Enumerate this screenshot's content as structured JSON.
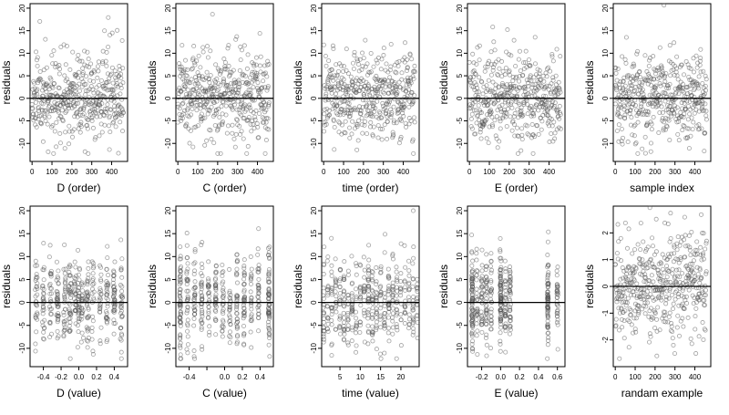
{
  "chart_data": [
    {
      "type": "scatter",
      "xlabel": "D (order)",
      "ylabel": "residuals",
      "xlim": [
        -10,
        480
      ],
      "ylim": [
        -14,
        21
      ],
      "xticks": [
        0,
        100,
        200,
        300,
        400
      ],
      "xtick_labels": [
        "0",
        "100",
        "200",
        "300",
        "400"
      ],
      "yticks": [
        -10,
        -5,
        0,
        5,
        10,
        15,
        20
      ],
      "ytick_labels": [
        "-10",
        "-5",
        "0",
        "5",
        "10",
        "15",
        "20"
      ],
      "hline": 0,
      "gen": {
        "kind": "order",
        "n": 460,
        "spread": 4.8,
        "seed": 11
      }
    },
    {
      "type": "scatter",
      "xlabel": "C (order)",
      "ylabel": "residuals",
      "xlim": [
        -10,
        480
      ],
      "ylim": [
        -14,
        21
      ],
      "xticks": [
        0,
        100,
        200,
        300,
        400
      ],
      "xtick_labels": [
        "0",
        "100",
        "200",
        "300",
        "400"
      ],
      "yticks": [
        -10,
        -5,
        0,
        5,
        10,
        15,
        20
      ],
      "ytick_labels": [
        "-10",
        "-5",
        "0",
        "5",
        "10",
        "15",
        "20"
      ],
      "hline": 0,
      "gen": {
        "kind": "order",
        "n": 460,
        "spread": 4.8,
        "seed": 23
      }
    },
    {
      "type": "scatter",
      "xlabel": "time (order)",
      "ylabel": "residuals",
      "xlim": [
        -10,
        480
      ],
      "ylim": [
        -14,
        21
      ],
      "xticks": [
        0,
        100,
        200,
        300,
        400
      ],
      "xtick_labels": [
        "0",
        "100",
        "200",
        "300",
        "400"
      ],
      "yticks": [
        -10,
        -5,
        0,
        5,
        10,
        15,
        20
      ],
      "ytick_labels": [
        "-10",
        "-5",
        "0",
        "5",
        "10",
        "15",
        "20"
      ],
      "hline": 0,
      "gen": {
        "kind": "order",
        "n": 460,
        "spread": 4.8,
        "seed": 37
      }
    },
    {
      "type": "scatter",
      "xlabel": "E (order)",
      "ylabel": "residuals",
      "xlim": [
        -10,
        480
      ],
      "ylim": [
        -14,
        21
      ],
      "xticks": [
        0,
        100,
        200,
        300,
        400
      ],
      "xtick_labels": [
        "0",
        "100",
        "200",
        "300",
        "400"
      ],
      "yticks": [
        -10,
        -5,
        0,
        5,
        10,
        15,
        20
      ],
      "ytick_labels": [
        "-10",
        "-5",
        "0",
        "5",
        "10",
        "15",
        "20"
      ],
      "hline": 0,
      "gen": {
        "kind": "order",
        "n": 460,
        "spread": 4.8,
        "seed": 41
      }
    },
    {
      "type": "scatter",
      "xlabel": "sample index",
      "ylabel": "residuals",
      "xlim": [
        -10,
        480
      ],
      "ylim": [
        -14,
        21
      ],
      "xticks": [
        0,
        100,
        200,
        300,
        400
      ],
      "xtick_labels": [
        "0",
        "100",
        "200",
        "300",
        "400"
      ],
      "yticks": [
        -10,
        -5,
        0,
        5,
        10,
        15,
        20
      ],
      "ytick_labels": [
        "-10",
        "-5",
        "0",
        "5",
        "10",
        "15",
        "20"
      ],
      "hline": 0,
      "gen": {
        "kind": "order",
        "n": 460,
        "spread": 4.8,
        "seed": 53
      }
    },
    {
      "type": "scatter",
      "xlabel": "D (value)",
      "ylabel": "residuals",
      "xlim": [
        -0.55,
        0.55
      ],
      "ylim": [
        -14,
        21
      ],
      "xticks": [
        -0.4,
        -0.2,
        0,
        0.2,
        0.4
      ],
      "xtick_labels": [
        "-0.4",
        "-0.2",
        "0.0",
        "0.2",
        "0.4"
      ],
      "yticks": [
        -10,
        -5,
        0,
        5,
        10,
        15,
        20
      ],
      "ytick_labels": [
        "-10",
        "-5",
        "0",
        "5",
        "10",
        "15",
        "20"
      ],
      "hline": 0,
      "gen": {
        "kind": "value",
        "n": 460,
        "spread": 4.8,
        "seed": 61,
        "xvals": [
          -0.48,
          -0.4,
          -0.32,
          -0.24,
          -0.16,
          -0.1,
          -0.04,
          0,
          0.04,
          0.1,
          0.16,
          0.24,
          0.32,
          0.4,
          0.48
        ],
        "jitter": 0.012
      }
    },
    {
      "type": "scatter",
      "xlabel": "C (value)",
      "ylabel": "residuals",
      "xlim": [
        -0.55,
        0.55
      ],
      "ylim": [
        -14,
        21
      ],
      "xticks": [
        -0.4,
        -0.2,
        0,
        0.2,
        0.4
      ],
      "xtick_labels": [
        "-0.4",
        "",
        "0.0",
        "0.2",
        "0.4"
      ],
      "yticks": [
        -10,
        -5,
        0,
        5,
        10,
        15,
        20
      ],
      "ytick_labels": [
        "-10",
        "-5",
        "0",
        "5",
        "10",
        "15",
        "20"
      ],
      "hline": 0,
      "gen": {
        "kind": "value",
        "n": 460,
        "spread": 4.8,
        "seed": 71,
        "xvals": [
          -0.5,
          -0.5,
          -0.42,
          -0.34,
          -0.26,
          -0.18,
          -0.1,
          -0.02,
          0.06,
          0.14,
          0.22,
          0.3,
          0.38,
          0.5,
          0.5
        ],
        "jitter": 0.008
      }
    },
    {
      "type": "scatter",
      "xlabel": "time (value)",
      "ylabel": "residuals",
      "xlim": [
        0.5,
        24.5
      ],
      "ylim": [
        -14,
        21
      ],
      "xticks": [
        5,
        10,
        15,
        20
      ],
      "xtick_labels": [
        "5",
        "10",
        "15",
        "20"
      ],
      "yticks": [
        -10,
        -5,
        0,
        5,
        10,
        15,
        20
      ],
      "ytick_labels": [
        "-10",
        "-5",
        "0",
        "5",
        "10",
        "15",
        "20"
      ],
      "hline": 0,
      "gen": {
        "kind": "value",
        "n": 460,
        "spread": 4.8,
        "seed": 83,
        "xvals": [
          1,
          2,
          3,
          4,
          5,
          6,
          7,
          8,
          9,
          10,
          11,
          12,
          12,
          13,
          14,
          15,
          16,
          17,
          18,
          19,
          20,
          21,
          22,
          23,
          24
        ],
        "jitter": 0.12
      }
    },
    {
      "type": "scatter",
      "xlabel": "E (value)",
      "ylabel": "residuals",
      "xlim": [
        -0.35,
        0.68
      ],
      "ylim": [
        -14,
        21
      ],
      "xticks": [
        -0.2,
        0,
        0.2,
        0.4,
        0.6
      ],
      "xtick_labels": [
        "-0.2",
        "0.0",
        "0.2",
        "0.4",
        "0.6"
      ],
      "yticks": [
        -10,
        -5,
        0,
        5,
        10,
        15,
        20
      ],
      "ytick_labels": [
        "-10",
        "-5",
        "0",
        "5",
        "10",
        "15",
        "20"
      ],
      "hline": 0,
      "gen": {
        "kind": "value",
        "n": 460,
        "spread": 4.8,
        "seed": 97,
        "xvals": [
          -0.3,
          -0.3,
          -0.3,
          -0.25,
          -0.2,
          -0.15,
          -0.1,
          0,
          0,
          0,
          0.05,
          0.1,
          0.5,
          0.5,
          0.6
        ],
        "jitter": 0.006
      }
    },
    {
      "type": "scatter",
      "xlabel": "randam example",
      "ylabel": "residuals",
      "xlim": [
        -10,
        480
      ],
      "ylim": [
        -3,
        3
      ],
      "xticks": [
        0,
        100,
        200,
        300,
        400
      ],
      "xtick_labels": [
        "0",
        "100",
        "200",
        "300",
        "400"
      ],
      "yticks": [
        -2,
        -1,
        0,
        1,
        2
      ],
      "ytick_labels": [
        "-2",
        "-1",
        "0",
        "1",
        "2"
      ],
      "hline": 0,
      "gen": {
        "kind": "order",
        "n": 460,
        "spread": 1.0,
        "seed": 109
      }
    }
  ]
}
